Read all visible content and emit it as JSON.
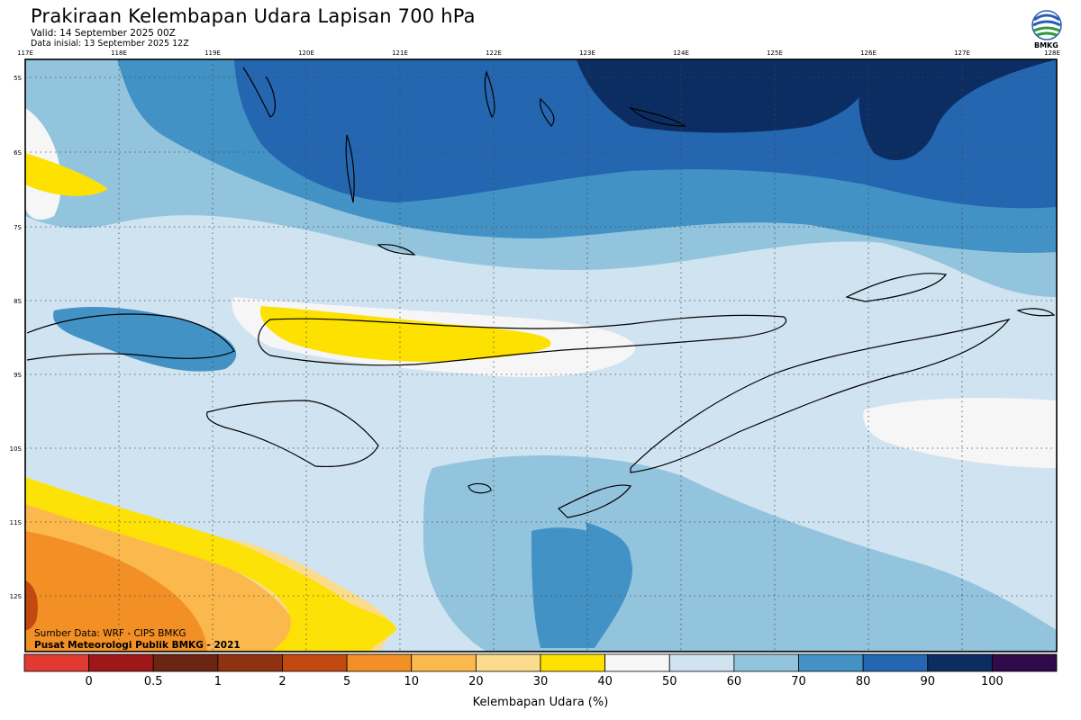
{
  "header": {
    "title": "Prakiraan Kelembapan Udara Lapisan 700 hPa",
    "valid": "Valid: 14 September 2025 00Z",
    "initial": "Data inisial: 13 September 2025 12Z",
    "logo_text": "BMKG"
  },
  "axes": {
    "lon_labels": [
      "117E",
      "118E",
      "119E",
      "120E",
      "121E",
      "122E",
      "123E",
      "124E",
      "125E",
      "126E",
      "127E",
      "128E"
    ],
    "lat_labels": [
      "5S",
      "6S",
      "7S",
      "8S",
      "9S",
      "10S",
      "11S",
      "12S"
    ]
  },
  "credits": {
    "source": "Sumber Data: WRF - CIPS BMKG",
    "org": "Pusat Meteorologi Publik BMKG - 2021"
  },
  "colorbar": {
    "title": "Kelembapan Udara (%)",
    "ticks": [
      "0",
      "0.5",
      "1",
      "2",
      "5",
      "10",
      "20",
      "30",
      "40",
      "50",
      "60",
      "70",
      "80",
      "90",
      "100"
    ],
    "colors": [
      "#e03a33",
      "#a01719",
      "#6b2613",
      "#8f3212",
      "#c24a10",
      "#f28f25",
      "#fbb84d",
      "#fbdc8c",
      "#fde100",
      "#f6f6f6",
      "#d0e3f0",
      "#93c4de",
      "#4392c6",
      "#2466af",
      "#0c2d62",
      "#300a4a"
    ]
  },
  "map_colors": {
    "land_outline": "#000000",
    "grid": "#444444"
  }
}
